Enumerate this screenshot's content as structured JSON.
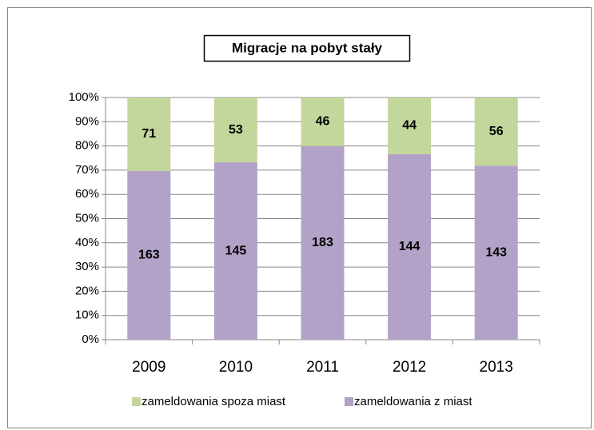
{
  "chart_data": {
    "type": "bar",
    "stacking": "percent",
    "title": "Migracje na pobyt stały",
    "categories": [
      "2009",
      "2010",
      "2011",
      "2012",
      "2013"
    ],
    "series": [
      {
        "name": "zameldowania spoza miast",
        "color": "#c3d69b",
        "values": [
          71,
          53,
          46,
          44,
          56
        ]
      },
      {
        "name": "zameldowania z miast",
        "color": "#b3a2c7",
        "values": [
          163,
          145,
          183,
          144,
          143
        ]
      }
    ],
    "ylim": [
      0,
      100
    ],
    "yticks": [
      {
        "value": 0,
        "label": "0%"
      },
      {
        "value": 10,
        "label": "10%"
      },
      {
        "value": 20,
        "label": "20%"
      },
      {
        "value": 30,
        "label": "30%"
      },
      {
        "value": 40,
        "label": "40%"
      },
      {
        "value": 50,
        "label": "50%"
      },
      {
        "value": 60,
        "label": "60%"
      },
      {
        "value": 70,
        "label": "70%"
      },
      {
        "value": 80,
        "label": "80%"
      },
      {
        "value": 90,
        "label": "90%"
      },
      {
        "value": 100,
        "label": "100%"
      }
    ],
    "grid": true,
    "legend": "bottom"
  }
}
